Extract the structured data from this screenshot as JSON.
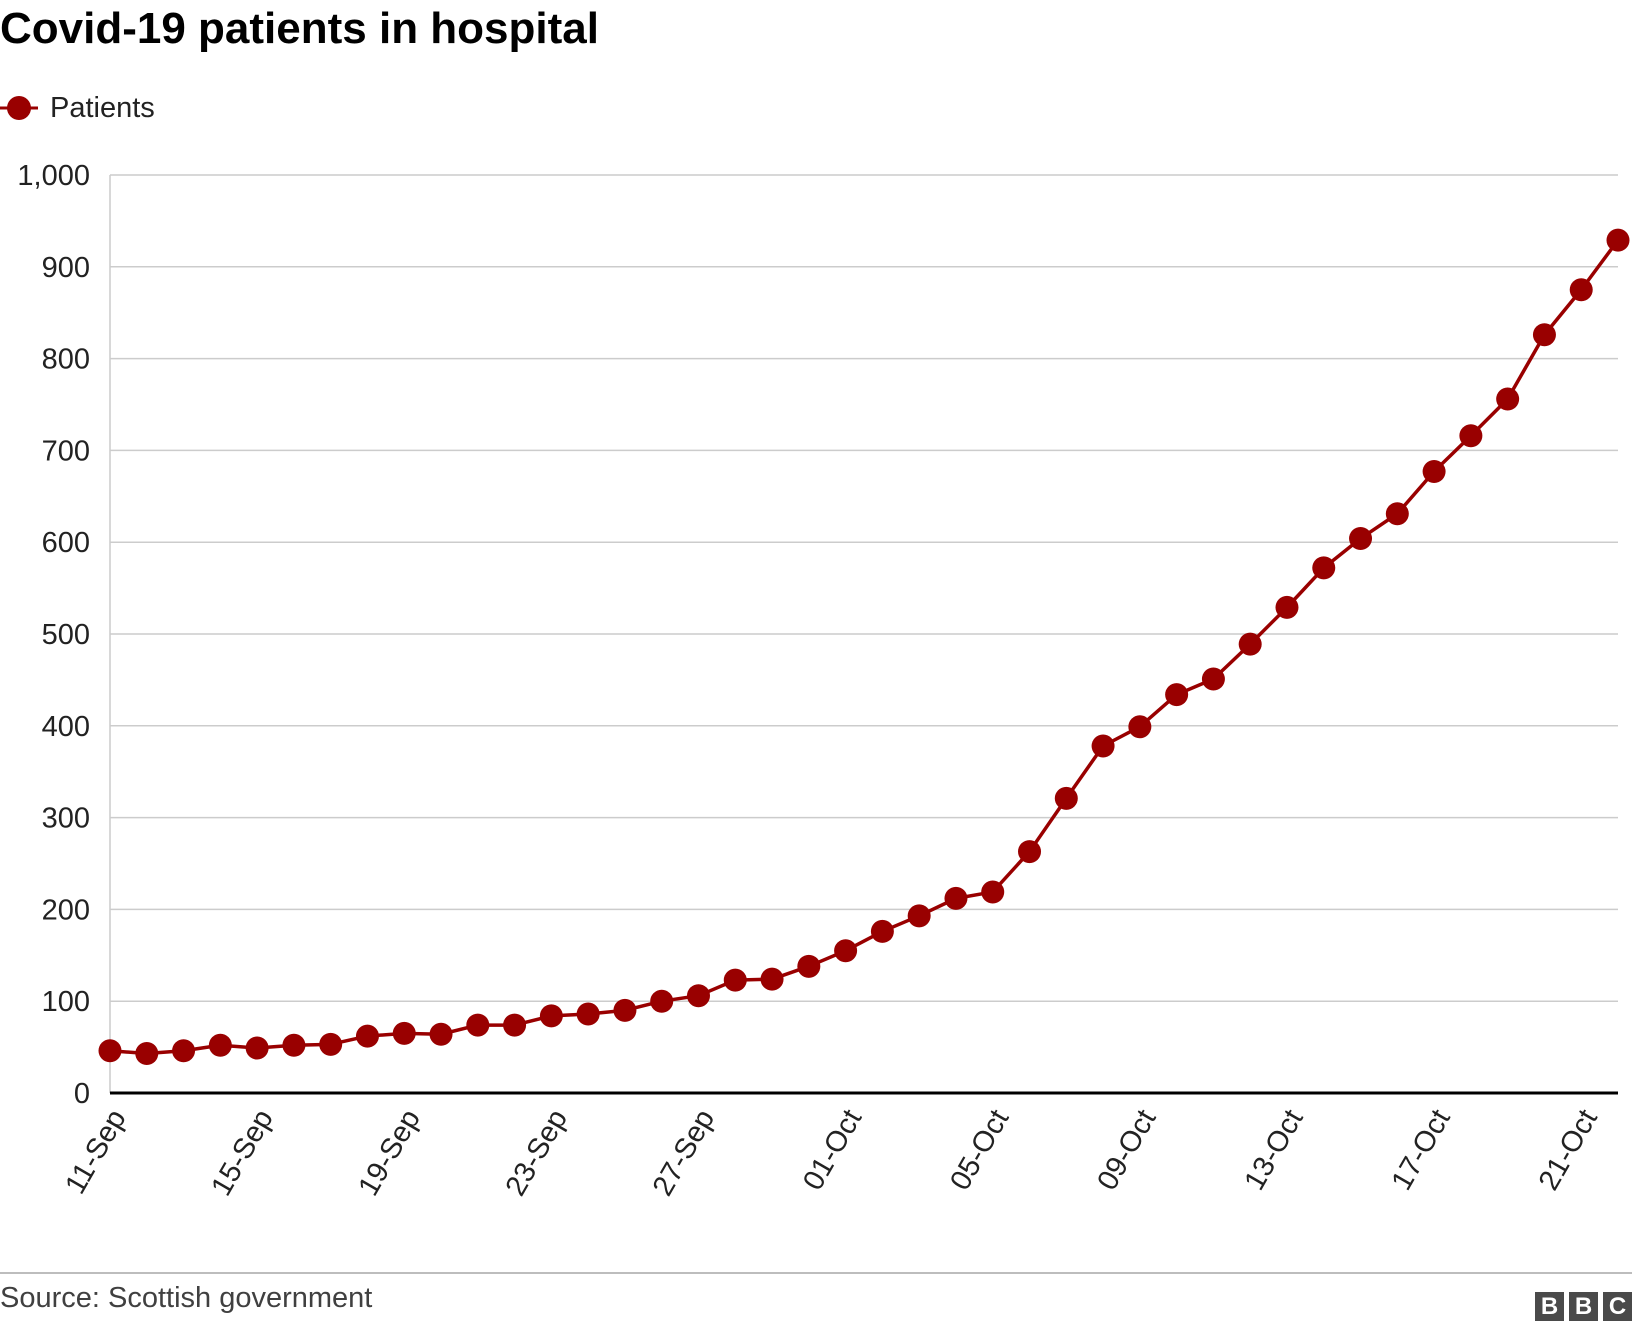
{
  "title": "Covid-19 patients in hospital",
  "source": "Source: Scottish government",
  "logo": [
    "B",
    "B",
    "C"
  ],
  "colors": {
    "series": "#990000",
    "grid": "#cccccc",
    "axis": "#000000"
  },
  "chart_data": {
    "type": "line",
    "title": "Covid-19 patients in hospital",
    "xlabel": "",
    "ylabel": "",
    "ylim": [
      0,
      1000
    ],
    "yticks": [
      "0",
      "100",
      "200",
      "300",
      "400",
      "500",
      "600",
      "700",
      "800",
      "900",
      "1,000"
    ],
    "grid": true,
    "legend": "top-left",
    "x_tick_labels": [
      "11-Sep",
      "15-Sep",
      "19-Sep",
      "23-Sep",
      "27-Sep",
      "01-Oct",
      "05-Oct",
      "09-Oct",
      "13-Oct",
      "17-Oct",
      "21-Oct"
    ],
    "x": [
      "11-Sep",
      "12-Sep",
      "13-Sep",
      "14-Sep",
      "15-Sep",
      "16-Sep",
      "17-Sep",
      "18-Sep",
      "19-Sep",
      "20-Sep",
      "21-Sep",
      "22-Sep",
      "23-Sep",
      "24-Sep",
      "25-Sep",
      "26-Sep",
      "27-Sep",
      "28-Sep",
      "29-Sep",
      "30-Sep",
      "01-Oct",
      "02-Oct",
      "03-Oct",
      "04-Oct",
      "05-Oct",
      "06-Oct",
      "07-Oct",
      "08-Oct",
      "09-Oct",
      "10-Oct",
      "11-Oct",
      "12-Oct",
      "13-Oct",
      "14-Oct",
      "15-Oct",
      "16-Oct",
      "17-Oct",
      "18-Oct",
      "19-Oct",
      "20-Oct",
      "21-Oct",
      "22-Oct"
    ],
    "series": [
      {
        "name": "Patients",
        "values": [
          46,
          43,
          46,
          52,
          49,
          52,
          53,
          62,
          65,
          64,
          74,
          74,
          84,
          86,
          90,
          100,
          106,
          123,
          124,
          138,
          155,
          176,
          193,
          212,
          219,
          263,
          321,
          378,
          399,
          434,
          451,
          489,
          529,
          572,
          604,
          631,
          677,
          716,
          756,
          826,
          875,
          929
        ]
      }
    ]
  }
}
